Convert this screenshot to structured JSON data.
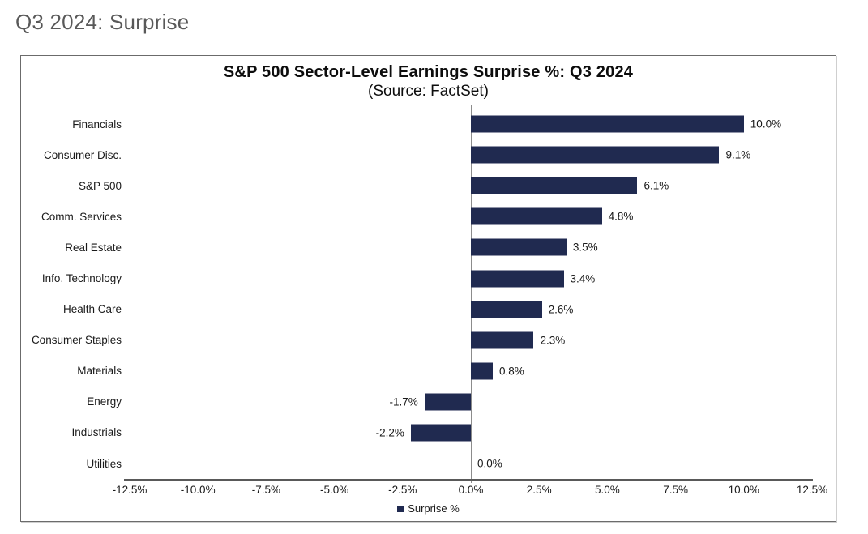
{
  "page": {
    "heading": "Q3 2024: Surprise"
  },
  "chart_data": {
    "type": "bar",
    "orientation": "horizontal",
    "title": "S&P 500 Sector-Level Earnings Surprise %: Q3 2024",
    "subtitle": "(Source: FactSet)",
    "categories": [
      "Financials",
      "Consumer Disc.",
      "S&P 500",
      "Comm. Services",
      "Real Estate",
      "Info. Technology",
      "Health Care",
      "Consumer Staples",
      "Materials",
      "Energy",
      "Industrials",
      "Utilities"
    ],
    "values": [
      10.0,
      9.1,
      6.1,
      4.8,
      3.5,
      3.4,
      2.6,
      2.3,
      0.8,
      -1.7,
      -2.2,
      0.0
    ],
    "value_labels": [
      "10.0%",
      "9.1%",
      "6.1%",
      "4.8%",
      "3.5%",
      "3.4%",
      "2.6%",
      "2.3%",
      "0.8%",
      "-1.7%",
      "-2.2%",
      "0.0%"
    ],
    "xlim": [
      -12.5,
      12.5
    ],
    "xticks": [
      "-12.5%",
      "-10.0%",
      "-7.5%",
      "-5.0%",
      "-2.5%",
      "0.0%",
      "2.5%",
      "5.0%",
      "7.5%",
      "10.0%",
      "12.5%"
    ],
    "grid": false,
    "legend": {
      "label": "Surprise %",
      "position": "bottom"
    },
    "colors": {
      "bar": "#202a50",
      "axis": "#595959",
      "zero_line": "#8c8c8c",
      "heading_gray": "#595959"
    }
  }
}
